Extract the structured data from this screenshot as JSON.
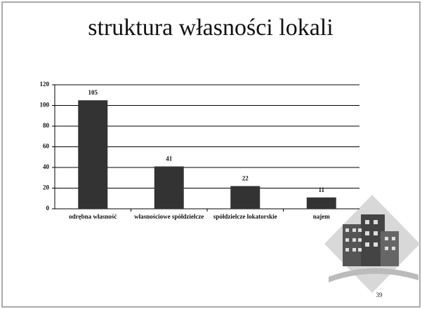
{
  "chart_data": {
    "type": "bar",
    "title": "struktura własności lokali",
    "categories": [
      "odrębna własność",
      "własnościowe spółdzielcze",
      "spółdzielcze lokatorskie",
      "najem"
    ],
    "values": [
      105,
      41,
      22,
      11
    ],
    "color": "#333333",
    "ylim": [
      0,
      120
    ],
    "yticks": [
      0,
      20,
      40,
      60,
      80,
      100,
      120
    ],
    "grid": true
  },
  "slide": {
    "page_number": 39
  }
}
